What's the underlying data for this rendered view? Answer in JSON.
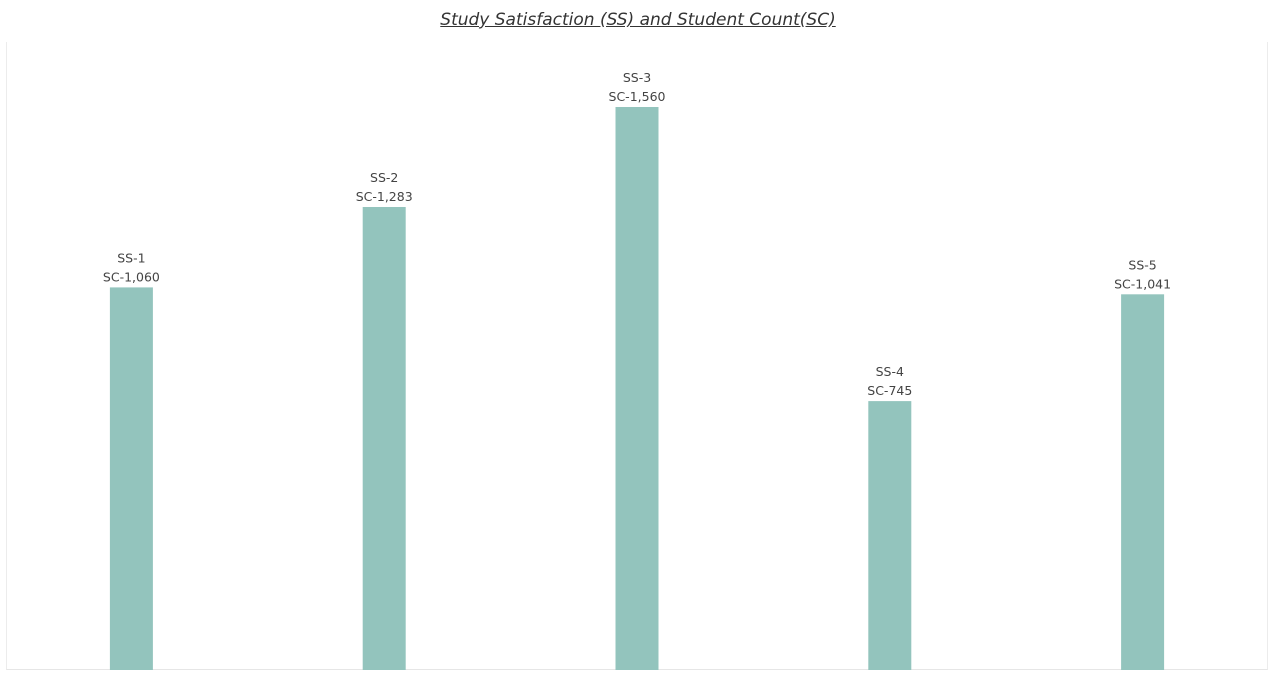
{
  "chart_data": {
    "type": "bar",
    "title": "Study Satisfaction (SS) and Student Count(SC)",
    "xlabel": "",
    "ylabel": "",
    "categories": [
      "SS-1",
      "SS-2",
      "SS-3",
      "SS-4",
      "SS-5"
    ],
    "values": [
      1060,
      1283,
      1560,
      745,
      1041
    ],
    "data_labels": [
      {
        "category": "SS-1",
        "count": "SC-1,060"
      },
      {
        "category": "SS-2",
        "count": "SC-1,283"
      },
      {
        "category": "SS-3",
        "count": "SC-1,560"
      },
      {
        "category": "SS-4",
        "count": "SC-745"
      },
      {
        "category": "SS-5",
        "count": "SC-1,041"
      }
    ],
    "ylim": [
      0,
      1560
    ],
    "grid": false,
    "legend": "none",
    "bar_color": "#93c4bd"
  }
}
